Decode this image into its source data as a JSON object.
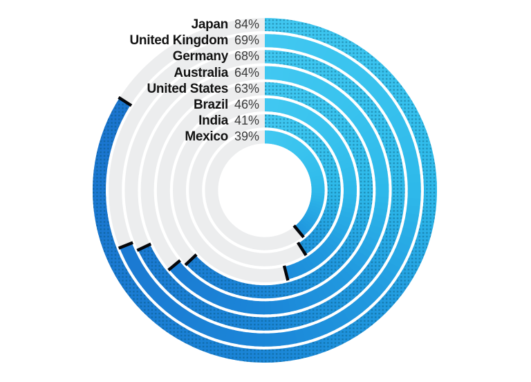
{
  "chart_data": {
    "type": "radial-bar",
    "categories": [
      "Japan",
      "United Kingdom",
      "Germany",
      "Australia",
      "United States",
      "Brazil",
      "India",
      "Mexico"
    ],
    "values": [
      84,
      69,
      68,
      64,
      63,
      46,
      41,
      39
    ],
    "value_labels": [
      "84%",
      "69%",
      "68%",
      "64%",
      "63%",
      "46%",
      "41%",
      "39%"
    ],
    "unit": "%",
    "start_angle_deg": 0,
    "direction": "clockwise",
    "ring_order": "outermost-to-innermost",
    "ring_textures": [
      "dotted",
      "solid",
      "dotted",
      "solid",
      "dotted",
      "solid",
      "dotted",
      "solid"
    ],
    "legend_position": "top-left, right-aligned against ring start",
    "colors": {
      "track": "#ECEDEE",
      "end_cap": "#05060A",
      "dot_overlay": "rgba(0,70,100,0.25)",
      "country_text": "#121212",
      "value_text": "#3A3A3A",
      "background": "#FFFFFF",
      "conic_stops": [
        [
          0,
          "#41C8F1"
        ],
        [
          50,
          "#38C2EE"
        ],
        [
          90,
          "#2EB9EA"
        ],
        [
          135,
          "#2199DF"
        ],
        [
          180,
          "#1B86D8"
        ],
        [
          240,
          "#1B7AD2"
        ],
        [
          300,
          "#1B75CF"
        ],
        [
          360,
          "#1A72CD"
        ]
      ]
    }
  }
}
